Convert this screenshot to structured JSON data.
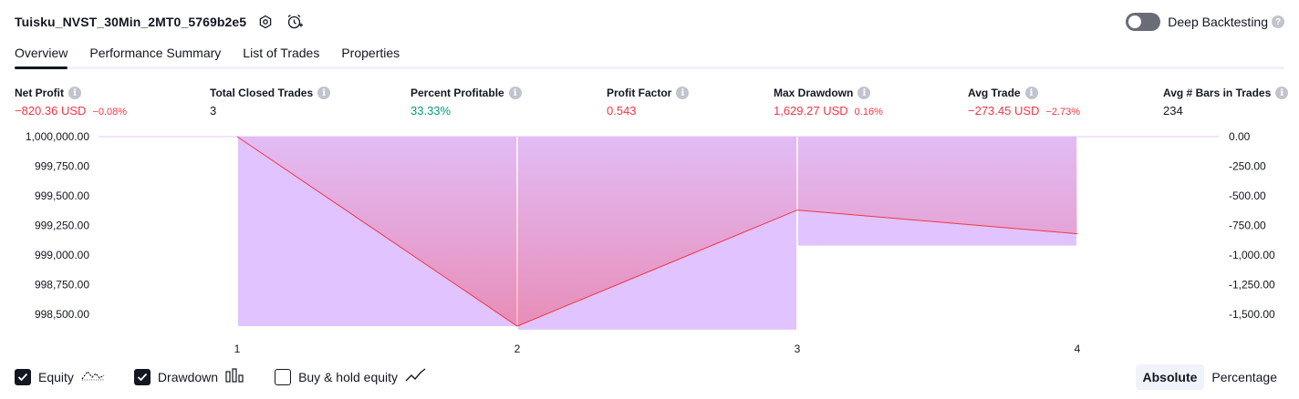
{
  "header": {
    "title": "Tuisku_NVST_30Min_2MT0_5769b2e5",
    "settings_icon": "gear-icon",
    "alert_icon": "add-alert-icon"
  },
  "deep_backtesting": {
    "label": "Deep Backtesting",
    "enabled": false,
    "help": "?"
  },
  "tabs": [
    {
      "label": "Overview",
      "active": true
    },
    {
      "label": "Performance Summary",
      "active": false
    },
    {
      "label": "List of Trades",
      "active": false
    },
    {
      "label": "Properties",
      "active": false
    }
  ],
  "metrics": {
    "net_profit": {
      "label": "Net Profit",
      "value": "−820.36 USD",
      "sub": "−0.08%"
    },
    "total_closed_trades": {
      "label": "Total Closed Trades",
      "value": "3"
    },
    "percent_profitable": {
      "label": "Percent Profitable",
      "value": "33.33%"
    },
    "profit_factor": {
      "label": "Profit Factor",
      "value": "0.543"
    },
    "max_drawdown": {
      "label": "Max Drawdown",
      "value": "1,629.27 USD",
      "sub": "0.16%"
    },
    "avg_trade": {
      "label": "Avg Trade",
      "value": "−273.45 USD",
      "sub": "−2.73%"
    },
    "avg_bars": {
      "label": "Avg # Bars in Trades",
      "value": "234"
    }
  },
  "colors": {
    "equity_line": "#f23645",
    "drawdown_bar": "#e1c3ff",
    "positive": "#089981",
    "negative": "#f23645"
  },
  "chart_data": {
    "type": "line",
    "x": [
      1,
      2,
      3,
      4
    ],
    "left_axis": {
      "ticks": [
        "1,000,000.00",
        "999,750.00",
        "999,500.00",
        "999,250.00",
        "999,000.00",
        "998,750.00",
        "998,500.00"
      ],
      "tick_values": [
        1000000,
        999750,
        999500,
        999250,
        999000,
        998750,
        998500
      ]
    },
    "right_axis": {
      "ticks": [
        "0.00",
        "-250.00",
        "-500.00",
        "-750.00",
        "-1,000.00",
        "-1,250.00",
        "-1,500.00"
      ],
      "tick_values": [
        0,
        -250,
        -500,
        -750,
        -1000,
        -1250,
        -1500
      ]
    },
    "x_ticks": [
      "1",
      "2",
      "3",
      "4"
    ],
    "series": [
      {
        "name": "Equity",
        "axis": "left",
        "x": [
          1,
          2,
          3,
          4
        ],
        "values": [
          1000000,
          998400,
          999380,
          999180
        ]
      },
      {
        "name": "Drawdown",
        "axis": "right",
        "type": "bar",
        "x": [
          1.5,
          2.5,
          3.5
        ],
        "values": [
          -1600,
          -1629.27,
          -920
        ]
      }
    ]
  },
  "legend": {
    "items": [
      {
        "label": "Equity",
        "checked": true,
        "icon": "equity-line-icon"
      },
      {
        "label": "Drawdown",
        "checked": true,
        "icon": "drawdown-bars-icon"
      },
      {
        "label": "Buy & hold equity",
        "checked": false,
        "icon": "buy-hold-line-icon"
      }
    ]
  },
  "modes": [
    {
      "label": "Absolute",
      "active": true
    },
    {
      "label": "Percentage",
      "active": false
    }
  ]
}
